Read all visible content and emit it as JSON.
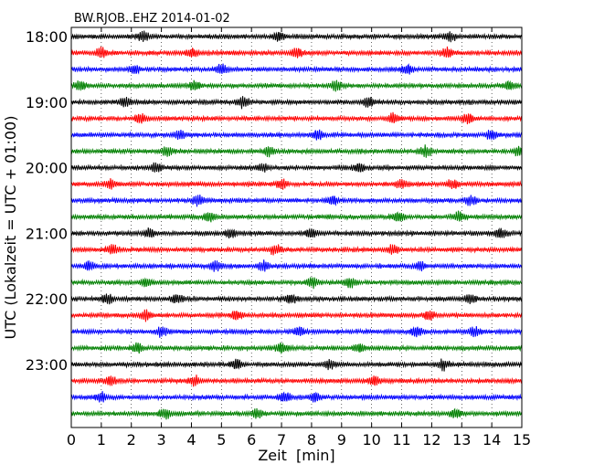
{
  "chart_data": {
    "type": "line",
    "title": "BW.RJOB..EHZ 2014-01-02",
    "xlabel": "Zeit  [min]",
    "ylabel": "UTC (Lokalzeit = UTC + 01:00)",
    "xlim": [
      0,
      15
    ],
    "x_ticks": [
      "0",
      "1",
      "2",
      "3",
      "4",
      "5",
      "6",
      "7",
      "8",
      "9",
      "10",
      "11",
      "12",
      "13",
      "14",
      "15"
    ],
    "y_ticks": [
      "18:00",
      "19:00",
      "20:00",
      "21:00",
      "22:00",
      "23:00"
    ],
    "grid": "vertical dotted",
    "trace_interval_min": 15,
    "trace_start": "18:00",
    "trace_count": 24,
    "trace_colors": [
      "#000000",
      "#ff0000",
      "#0000ff",
      "#008000"
    ],
    "bursts": [
      {
        "trace": 0,
        "x": [
          2.4,
          6.9,
          12.6
        ]
      },
      {
        "trace": 1,
        "x": [
          1.0,
          4.0,
          7.5,
          12.5
        ]
      },
      {
        "trace": 2,
        "x": [
          2.1,
          5.0,
          11.2
        ]
      },
      {
        "trace": 3,
        "x": [
          0.3,
          4.1,
          8.8,
          14.6
        ]
      },
      {
        "trace": 4,
        "x": [
          1.8,
          5.7,
          9.9
        ]
      },
      {
        "trace": 5,
        "x": [
          2.3,
          10.7,
          13.2
        ]
      },
      {
        "trace": 6,
        "x": [
          3.6,
          8.2,
          14.0
        ]
      },
      {
        "trace": 7,
        "x": [
          3.2,
          6.6,
          11.8,
          14.9
        ]
      },
      {
        "trace": 8,
        "x": [
          2.8,
          6.4,
          9.6
        ]
      },
      {
        "trace": 9,
        "x": [
          1.3,
          7.0,
          11.0,
          12.7
        ]
      },
      {
        "trace": 10,
        "x": [
          4.2,
          8.7,
          13.3
        ]
      },
      {
        "trace": 11,
        "x": [
          4.6,
          10.9,
          12.9
        ]
      },
      {
        "trace": 12,
        "x": [
          2.6,
          5.3,
          8.0,
          14.3
        ]
      },
      {
        "trace": 13,
        "x": [
          1.4,
          6.8,
          10.7
        ]
      },
      {
        "trace": 14,
        "x": [
          0.6,
          4.8,
          6.4,
          11.6
        ]
      },
      {
        "trace": 15,
        "x": [
          2.5,
          8.0,
          9.3
        ]
      },
      {
        "trace": 16,
        "x": [
          1.2,
          3.5,
          7.3,
          13.3
        ]
      },
      {
        "trace": 17,
        "x": [
          2.5,
          5.5,
          11.9
        ]
      },
      {
        "trace": 18,
        "x": [
          3.0,
          7.6,
          11.5,
          13.4
        ]
      },
      {
        "trace": 19,
        "x": [
          2.2,
          7.0,
          9.6
        ]
      },
      {
        "trace": 20,
        "x": [
          5.5,
          8.6,
          12.4
        ]
      },
      {
        "trace": 21,
        "x": [
          1.3,
          4.1,
          10.1
        ]
      },
      {
        "trace": 22,
        "x": [
          1.0,
          7.1,
          8.1
        ]
      },
      {
        "trace": 23,
        "x": [
          3.1,
          6.2,
          12.8
        ]
      }
    ]
  }
}
